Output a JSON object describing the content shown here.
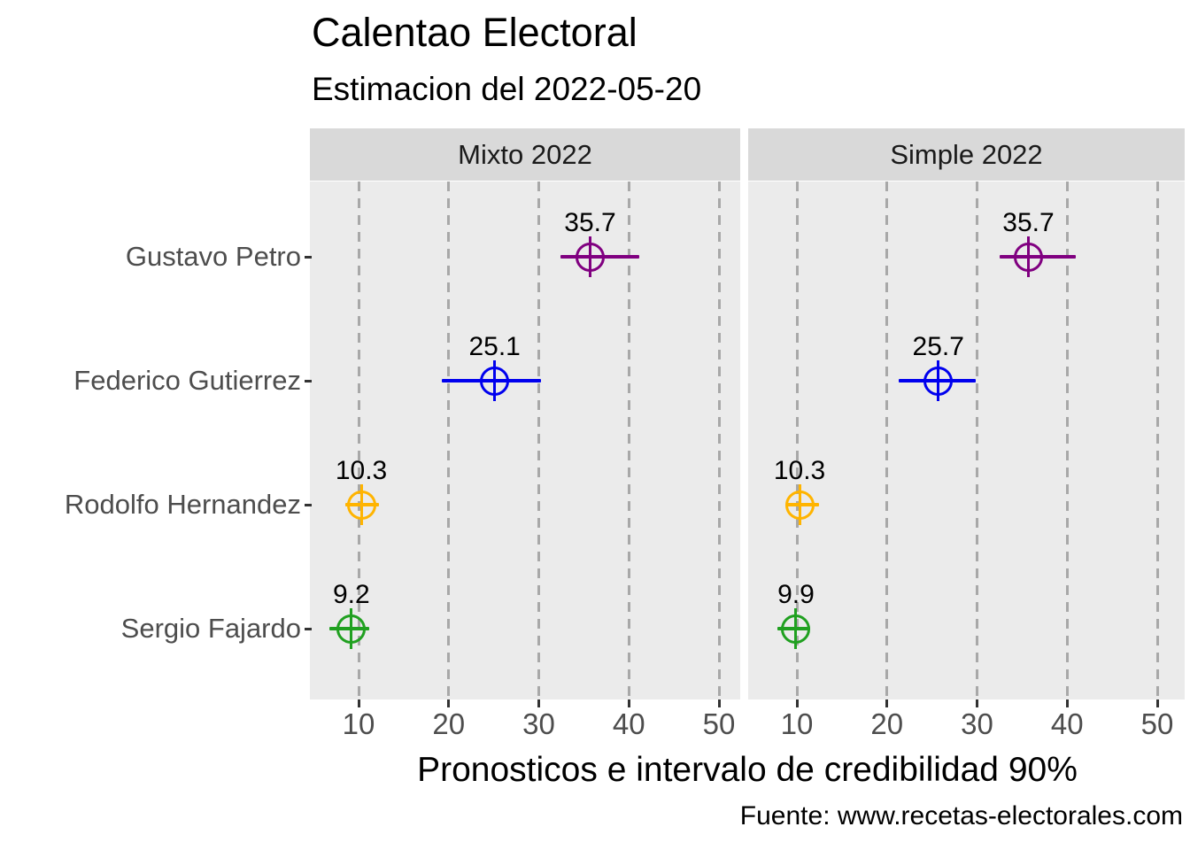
{
  "chart_data": {
    "type": "scatter",
    "title": "Calentao Electoral",
    "subtitle": "Estimacion del 2022-05-20",
    "xlabel": "Pronosticos e intervalo de credibilidad 90%",
    "caption": "Fuente: www.recetas-electorales.com",
    "interval_level": "90%",
    "x_ticks": [
      10,
      20,
      30,
      40,
      50
    ],
    "x_range": [
      4.6,
      52.4
    ],
    "grid": "dashed-vertical",
    "legend": "none",
    "candidates": [
      "Gustavo Petro",
      "Federico Gutierrez",
      "Rodolfo Hernandez",
      "Sergio Fajardo"
    ],
    "facets": [
      {
        "label": "Mixto 2022",
        "points": [
          {
            "candidate": "Gustavo Petro",
            "estimate": 35.7,
            "label": "35.7",
            "ci_low": 32.4,
            "ci_high": 41.2,
            "color": "#800080"
          },
          {
            "candidate": "Federico Gutierrez",
            "estimate": 25.1,
            "label": "25.1",
            "ci_low": 19.2,
            "ci_high": 30.2,
            "color": "#0000ee"
          },
          {
            "candidate": "Rodolfo Hernandez",
            "estimate": 10.3,
            "label": "10.3",
            "ci_low": 8.5,
            "ci_high": 12.3,
            "color": "#ffb400"
          },
          {
            "candidate": "Sergio Fajardo",
            "estimate": 9.2,
            "label": "9.2",
            "ci_low": 6.8,
            "ci_high": 11.2,
            "color": "#20a020"
          }
        ]
      },
      {
        "label": "Simple 2022",
        "points": [
          {
            "candidate": "Gustavo Petro",
            "estimate": 35.7,
            "label": "35.7",
            "ci_low": 32.5,
            "ci_high": 41.0,
            "color": "#800080"
          },
          {
            "candidate": "Federico Gutierrez",
            "estimate": 25.7,
            "label": "25.7",
            "ci_low": 21.3,
            "ci_high": 29.9,
            "color": "#0000ee"
          },
          {
            "candidate": "Rodolfo Hernandez",
            "estimate": 10.3,
            "label": "10.3",
            "ci_low": 8.8,
            "ci_high": 12.5,
            "color": "#ffb400"
          },
          {
            "candidate": "Sergio Fajardo",
            "estimate": 9.9,
            "label": "9.9",
            "ci_low": 7.8,
            "ci_high": 11.5,
            "color": "#20a020"
          }
        ]
      }
    ]
  }
}
